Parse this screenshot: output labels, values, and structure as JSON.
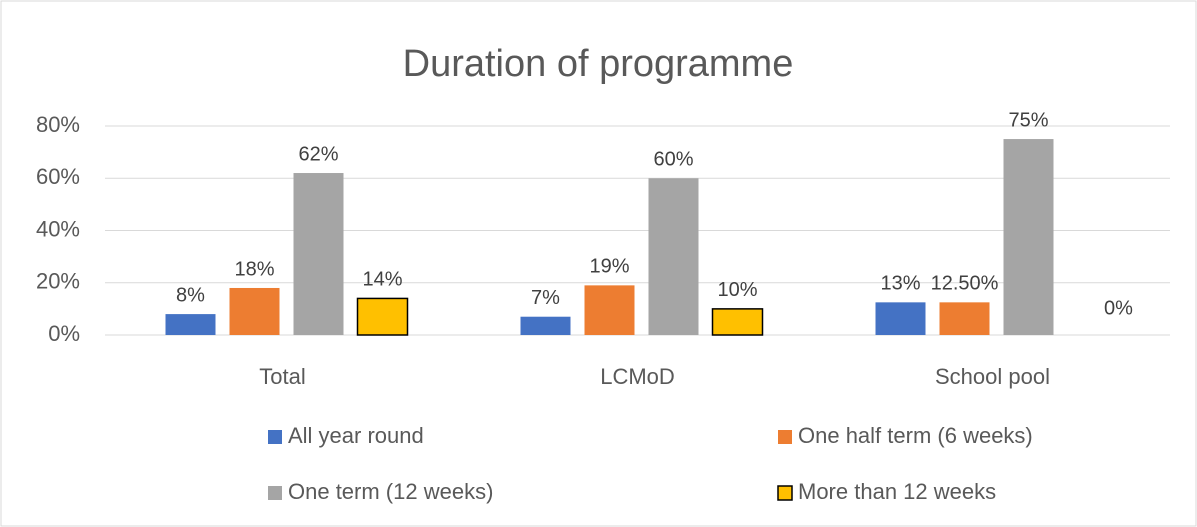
{
  "chart_data": {
    "type": "bar",
    "title": "Duration of programme",
    "categories": [
      "Total",
      "LCMoD",
      "School pool"
    ],
    "series": [
      {
        "name": "All year round",
        "color": "#4472c4",
        "values": [
          8,
          7,
          12.5
        ],
        "value_labels": [
          "8%",
          "7%",
          "13%"
        ]
      },
      {
        "name": "One half term (6 weeks)",
        "color": "#ed7d31",
        "values": [
          18,
          19,
          12.5
        ],
        "value_labels": [
          "18%",
          "19%",
          "12.50%"
        ]
      },
      {
        "name": "One term (12 weeks)",
        "color": "#a5a5a5",
        "values": [
          62,
          60,
          75
        ],
        "value_labels": [
          "62%",
          "60%",
          "75%"
        ]
      },
      {
        "name": "More than 12 weeks",
        "color": "#ffc000",
        "edgecolor": "#000000",
        "values": [
          14,
          10,
          0
        ],
        "value_labels": [
          "14%",
          "10%",
          "0%"
        ]
      }
    ],
    "ylim": [
      0,
      80
    ],
    "yticks": [
      {
        "value": 0,
        "label": "0%"
      },
      {
        "value": 20,
        "label": "20%"
      },
      {
        "value": 40,
        "label": "40%"
      },
      {
        "value": 60,
        "label": "60%"
      },
      {
        "value": 80,
        "label": "80%"
      }
    ],
    "grid": true,
    "legend": "bottom"
  }
}
